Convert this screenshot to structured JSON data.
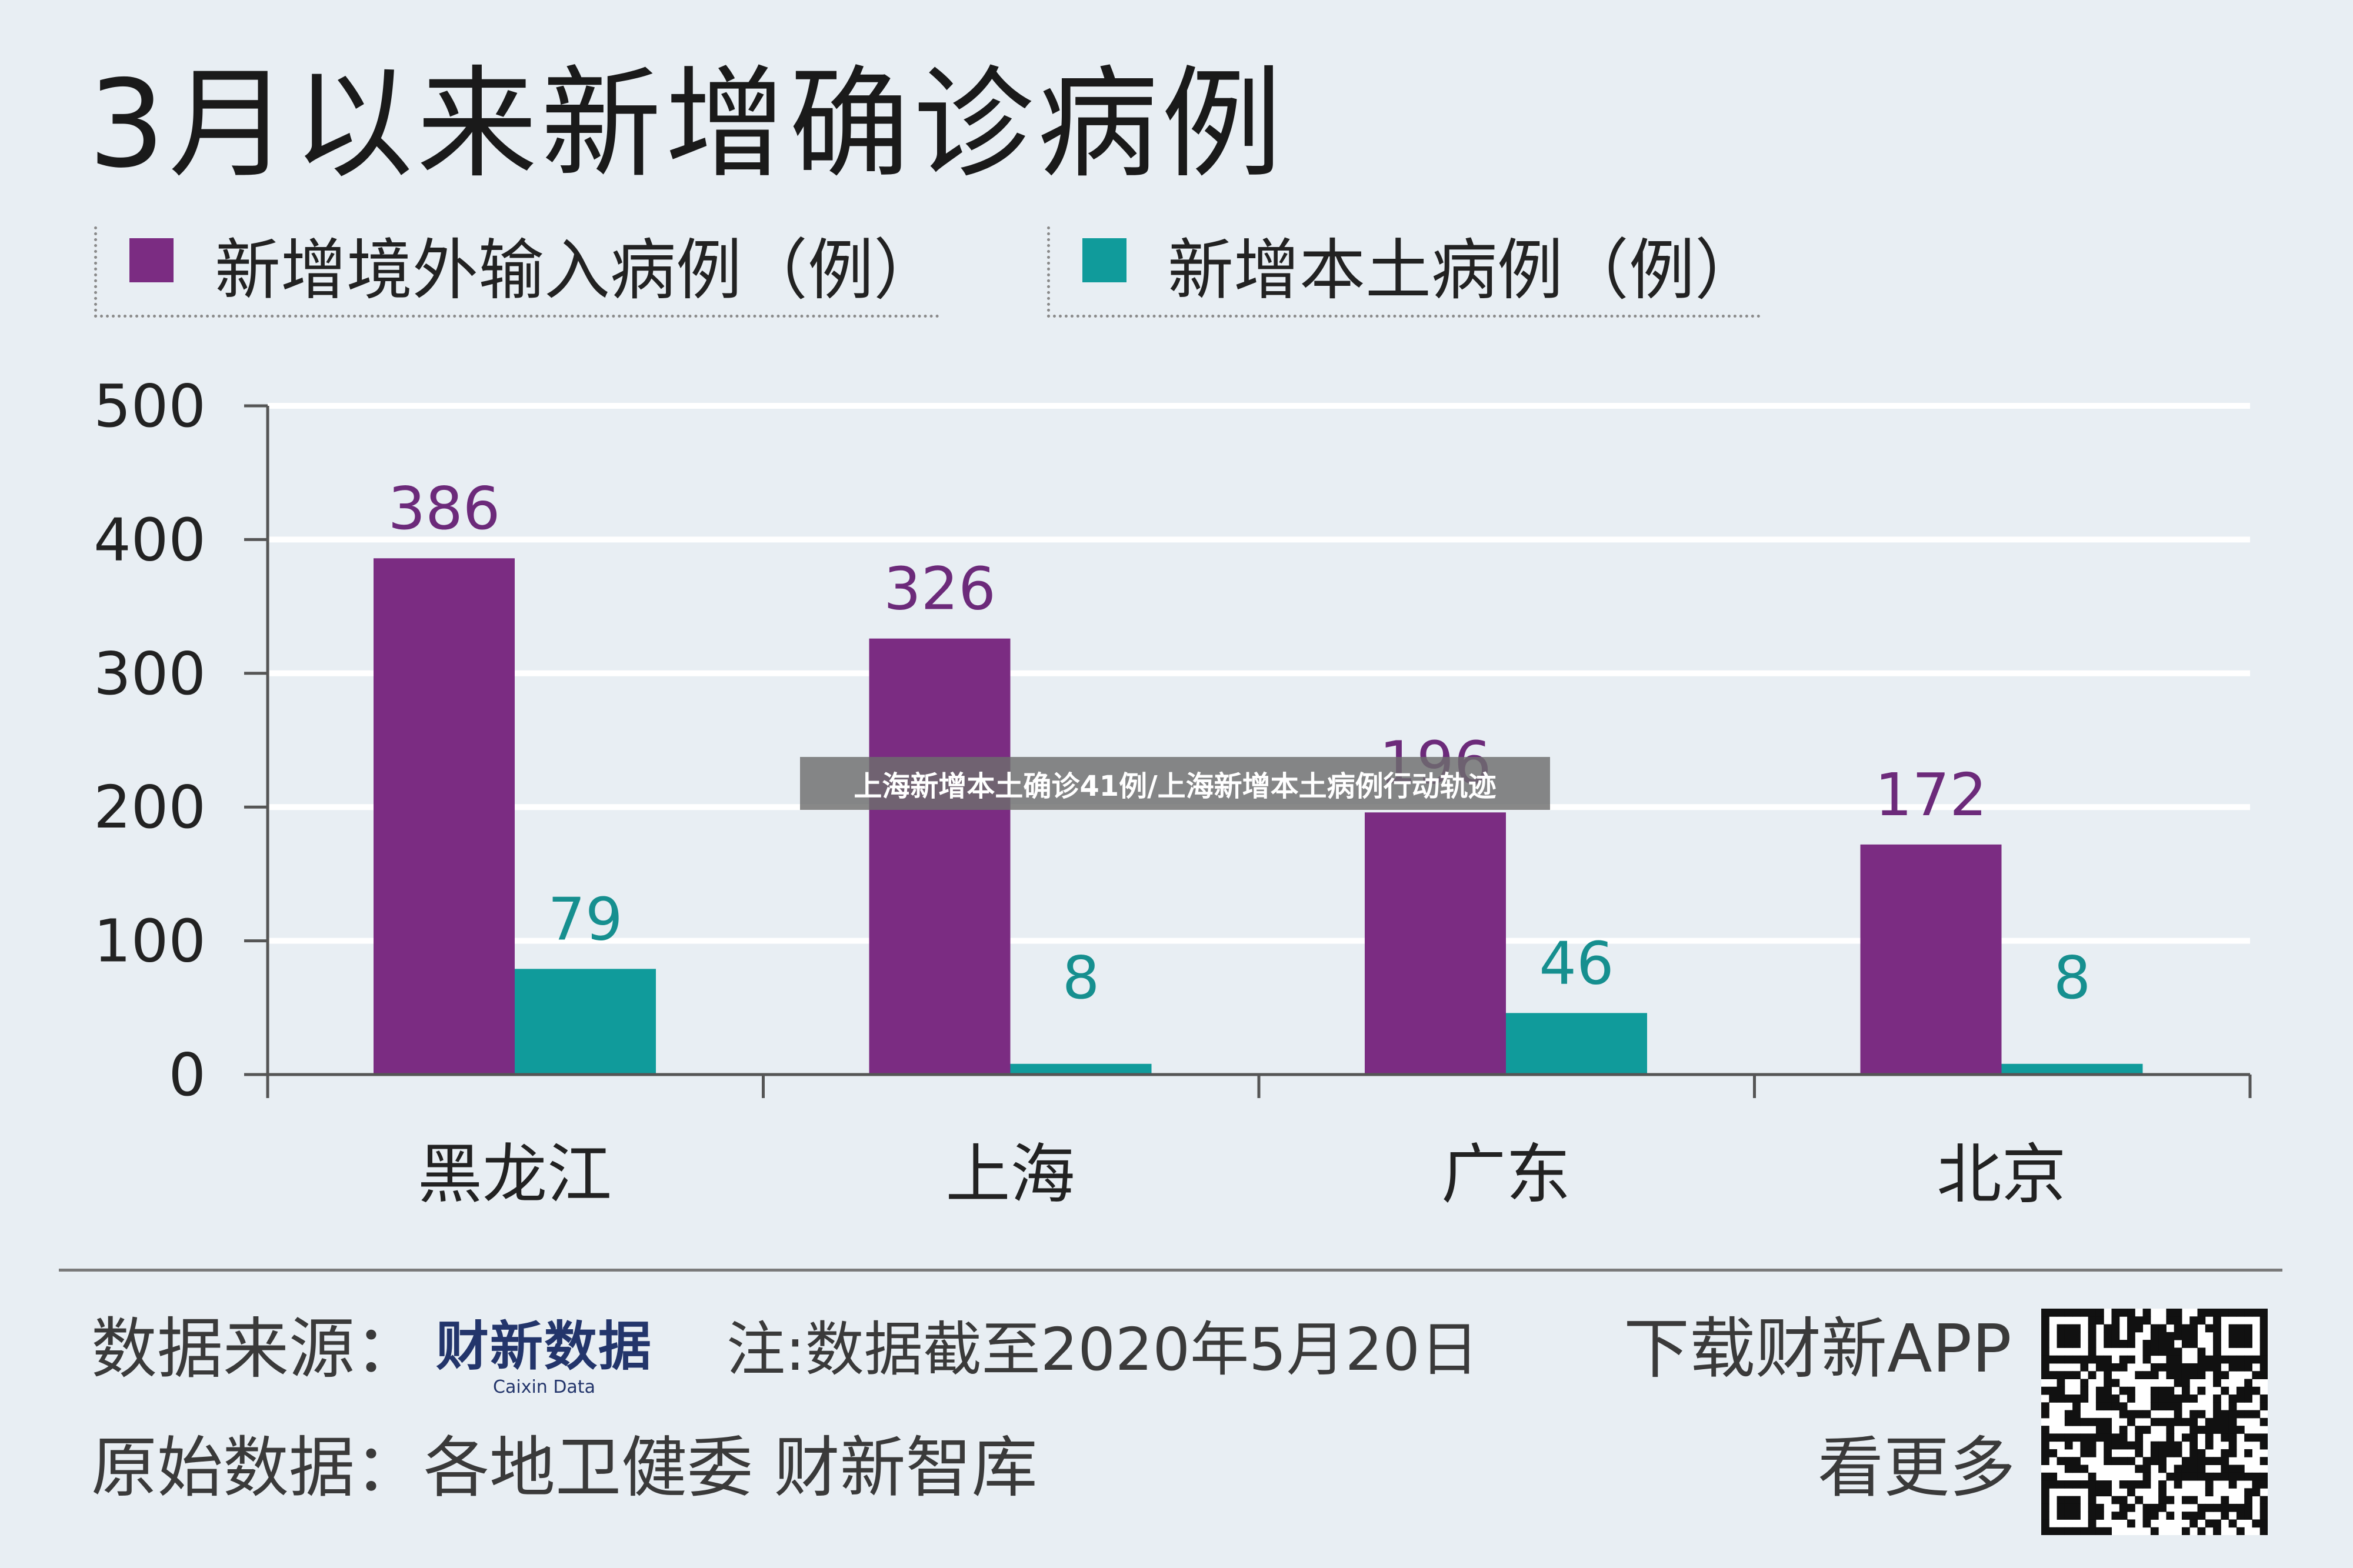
{
  "title": "3月以来新增确诊病例",
  "legend": [
    {
      "label": "新增境外输入病例（例）",
      "color": "#7b2c82"
    },
    {
      "label": "新增本土病例（例）",
      "color": "#109b9b"
    }
  ],
  "overlay_caption": "上海新增本土确诊41例/上海新增本土病例行动轨迹",
  "chart_data": {
    "type": "bar",
    "title": "3月以来新增确诊病例",
    "categories": [
      "黑龙江",
      "上海",
      "广东",
      "北京"
    ],
    "series": [
      {
        "name": "新增境外输入病例（例）",
        "values": [
          386,
          326,
          196,
          172
        ],
        "color": "#7b2c82",
        "label_color": "#6c2a7a"
      },
      {
        "name": "新增本土病例（例）",
        "values": [
          79,
          8,
          46,
          8
        ],
        "color": "#109b9b",
        "label_color": "#168f8f"
      }
    ],
    "ylim": [
      0,
      500
    ],
    "yticks": [
      0,
      100,
      200,
      300,
      400,
      500
    ],
    "grid": true,
    "legend_position": "top-left"
  },
  "footer": {
    "source_label": "数据来源：",
    "brand_name": "财新数据",
    "brand_sub": "Caixin Data",
    "note": "注:数据截至2020年5月20日",
    "raw_label": "原始数据：",
    "raw_sources": "各地卫健委 财新智库",
    "download": "下载财新APP",
    "more": "看更多"
  }
}
